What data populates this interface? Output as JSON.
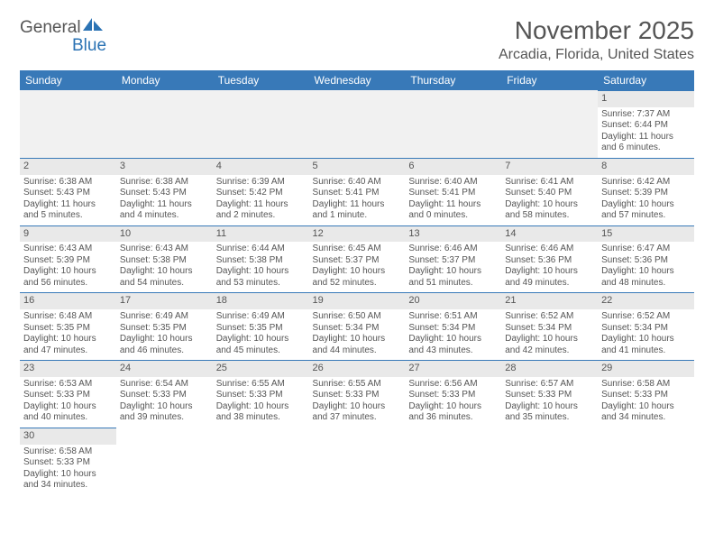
{
  "logo": {
    "part1": "General",
    "part2": "Blue",
    "shape_color": "#2b73b4"
  },
  "title": "November 2025",
  "location": "Arcadia, Florida, United States",
  "header_bg": "#3879b8",
  "header_fg": "#ffffff",
  "daynum_bg": "#e9e9e9",
  "border_color": "#3879b8",
  "day_names": [
    "Sunday",
    "Monday",
    "Tuesday",
    "Wednesday",
    "Thursday",
    "Friday",
    "Saturday"
  ],
  "weeks": [
    [
      null,
      null,
      null,
      null,
      null,
      null,
      {
        "n": "1",
        "sunrise": "Sunrise: 7:37 AM",
        "sunset": "Sunset: 6:44 PM",
        "d1": "Daylight: 11 hours",
        "d2": "and 6 minutes."
      }
    ],
    [
      {
        "n": "2",
        "sunrise": "Sunrise: 6:38 AM",
        "sunset": "Sunset: 5:43 PM",
        "d1": "Daylight: 11 hours",
        "d2": "and 5 minutes."
      },
      {
        "n": "3",
        "sunrise": "Sunrise: 6:38 AM",
        "sunset": "Sunset: 5:43 PM",
        "d1": "Daylight: 11 hours",
        "d2": "and 4 minutes."
      },
      {
        "n": "4",
        "sunrise": "Sunrise: 6:39 AM",
        "sunset": "Sunset: 5:42 PM",
        "d1": "Daylight: 11 hours",
        "d2": "and 2 minutes."
      },
      {
        "n": "5",
        "sunrise": "Sunrise: 6:40 AM",
        "sunset": "Sunset: 5:41 PM",
        "d1": "Daylight: 11 hours",
        "d2": "and 1 minute."
      },
      {
        "n": "6",
        "sunrise": "Sunrise: 6:40 AM",
        "sunset": "Sunset: 5:41 PM",
        "d1": "Daylight: 11 hours",
        "d2": "and 0 minutes."
      },
      {
        "n": "7",
        "sunrise": "Sunrise: 6:41 AM",
        "sunset": "Sunset: 5:40 PM",
        "d1": "Daylight: 10 hours",
        "d2": "and 58 minutes."
      },
      {
        "n": "8",
        "sunrise": "Sunrise: 6:42 AM",
        "sunset": "Sunset: 5:39 PM",
        "d1": "Daylight: 10 hours",
        "d2": "and 57 minutes."
      }
    ],
    [
      {
        "n": "9",
        "sunrise": "Sunrise: 6:43 AM",
        "sunset": "Sunset: 5:39 PM",
        "d1": "Daylight: 10 hours",
        "d2": "and 56 minutes."
      },
      {
        "n": "10",
        "sunrise": "Sunrise: 6:43 AM",
        "sunset": "Sunset: 5:38 PM",
        "d1": "Daylight: 10 hours",
        "d2": "and 54 minutes."
      },
      {
        "n": "11",
        "sunrise": "Sunrise: 6:44 AM",
        "sunset": "Sunset: 5:38 PM",
        "d1": "Daylight: 10 hours",
        "d2": "and 53 minutes."
      },
      {
        "n": "12",
        "sunrise": "Sunrise: 6:45 AM",
        "sunset": "Sunset: 5:37 PM",
        "d1": "Daylight: 10 hours",
        "d2": "and 52 minutes."
      },
      {
        "n": "13",
        "sunrise": "Sunrise: 6:46 AM",
        "sunset": "Sunset: 5:37 PM",
        "d1": "Daylight: 10 hours",
        "d2": "and 51 minutes."
      },
      {
        "n": "14",
        "sunrise": "Sunrise: 6:46 AM",
        "sunset": "Sunset: 5:36 PM",
        "d1": "Daylight: 10 hours",
        "d2": "and 49 minutes."
      },
      {
        "n": "15",
        "sunrise": "Sunrise: 6:47 AM",
        "sunset": "Sunset: 5:36 PM",
        "d1": "Daylight: 10 hours",
        "d2": "and 48 minutes."
      }
    ],
    [
      {
        "n": "16",
        "sunrise": "Sunrise: 6:48 AM",
        "sunset": "Sunset: 5:35 PM",
        "d1": "Daylight: 10 hours",
        "d2": "and 47 minutes."
      },
      {
        "n": "17",
        "sunrise": "Sunrise: 6:49 AM",
        "sunset": "Sunset: 5:35 PM",
        "d1": "Daylight: 10 hours",
        "d2": "and 46 minutes."
      },
      {
        "n": "18",
        "sunrise": "Sunrise: 6:49 AM",
        "sunset": "Sunset: 5:35 PM",
        "d1": "Daylight: 10 hours",
        "d2": "and 45 minutes."
      },
      {
        "n": "19",
        "sunrise": "Sunrise: 6:50 AM",
        "sunset": "Sunset: 5:34 PM",
        "d1": "Daylight: 10 hours",
        "d2": "and 44 minutes."
      },
      {
        "n": "20",
        "sunrise": "Sunrise: 6:51 AM",
        "sunset": "Sunset: 5:34 PM",
        "d1": "Daylight: 10 hours",
        "d2": "and 43 minutes."
      },
      {
        "n": "21",
        "sunrise": "Sunrise: 6:52 AM",
        "sunset": "Sunset: 5:34 PM",
        "d1": "Daylight: 10 hours",
        "d2": "and 42 minutes."
      },
      {
        "n": "22",
        "sunrise": "Sunrise: 6:52 AM",
        "sunset": "Sunset: 5:34 PM",
        "d1": "Daylight: 10 hours",
        "d2": "and 41 minutes."
      }
    ],
    [
      {
        "n": "23",
        "sunrise": "Sunrise: 6:53 AM",
        "sunset": "Sunset: 5:33 PM",
        "d1": "Daylight: 10 hours",
        "d2": "and 40 minutes."
      },
      {
        "n": "24",
        "sunrise": "Sunrise: 6:54 AM",
        "sunset": "Sunset: 5:33 PM",
        "d1": "Daylight: 10 hours",
        "d2": "and 39 minutes."
      },
      {
        "n": "25",
        "sunrise": "Sunrise: 6:55 AM",
        "sunset": "Sunset: 5:33 PM",
        "d1": "Daylight: 10 hours",
        "d2": "and 38 minutes."
      },
      {
        "n": "26",
        "sunrise": "Sunrise: 6:55 AM",
        "sunset": "Sunset: 5:33 PM",
        "d1": "Daylight: 10 hours",
        "d2": "and 37 minutes."
      },
      {
        "n": "27",
        "sunrise": "Sunrise: 6:56 AM",
        "sunset": "Sunset: 5:33 PM",
        "d1": "Daylight: 10 hours",
        "d2": "and 36 minutes."
      },
      {
        "n": "28",
        "sunrise": "Sunrise: 6:57 AM",
        "sunset": "Sunset: 5:33 PM",
        "d1": "Daylight: 10 hours",
        "d2": "and 35 minutes."
      },
      {
        "n": "29",
        "sunrise": "Sunrise: 6:58 AM",
        "sunset": "Sunset: 5:33 PM",
        "d1": "Daylight: 10 hours",
        "d2": "and 34 minutes."
      }
    ],
    [
      {
        "n": "30",
        "sunrise": "Sunrise: 6:58 AM",
        "sunset": "Sunset: 5:33 PM",
        "d1": "Daylight: 10 hours",
        "d2": "and 34 minutes."
      },
      null,
      null,
      null,
      null,
      null,
      null
    ]
  ]
}
